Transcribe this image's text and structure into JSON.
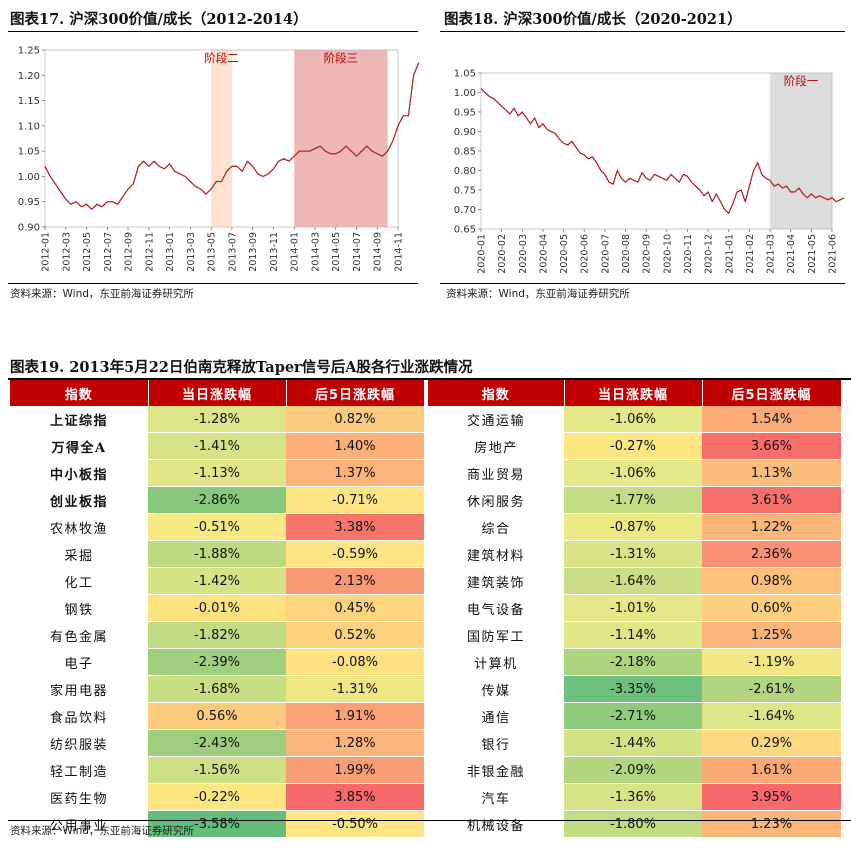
{
  "fig17": {
    "title": "图表17. 沪深300价值/成长（2012-2014）",
    "source": "资料来源：Wind，东亚前海证券研究所",
    "chart_data": {
      "type": "line",
      "title": "沪深300价值/成长（2012-2014）",
      "ylim": [
        0.9,
        1.25
      ],
      "yticks": [
        "0.90",
        "0.95",
        "1.00",
        "1.05",
        "1.10",
        "1.15",
        "1.20",
        "1.25"
      ],
      "xticks": [
        "2012-01",
        "2012-03",
        "2012-05",
        "2012-07",
        "2012-09",
        "2012-11",
        "2013-01",
        "2013-03",
        "2013-05",
        "2013-07",
        "2013-09",
        "2013-11",
        "2014-01",
        "2014-03",
        "2014-05",
        "2014-07",
        "2014-09",
        "2014-11"
      ],
      "shaded_regions": [
        {
          "label": "阶段二",
          "start": "2013-05",
          "end": "2013-07",
          "color": "#fde3cf"
        },
        {
          "label": "阶段三",
          "start": "2014-01",
          "end": "2014-10",
          "color": "#efb8b8"
        }
      ],
      "series": [
        {
          "name": "沪深300价值/成长",
          "color": "#b42828",
          "x": [
            0,
            0.5,
            1,
            1.5,
            2,
            2.5,
            3,
            3.5,
            4,
            4.5,
            5,
            5.5,
            6,
            6.5,
            7,
            7.5,
            8,
            8.5,
            9,
            9.5,
            10,
            10.5,
            11,
            11.5,
            12,
            12.5,
            13,
            13.5,
            14,
            14.5,
            15,
            15.5,
            16,
            16.5,
            17,
            17.5,
            18,
            18.5,
            19,
            19.5,
            20,
            20.5,
            21,
            21.5,
            22,
            22.5,
            23,
            23.5,
            24,
            24.5,
            25,
            25.5,
            26,
            26.5,
            27,
            27.5,
            28,
            28.5,
            29,
            29.5,
            30,
            30.5,
            31,
            31.5,
            32,
            32.5,
            33,
            33.5,
            34,
            34.5,
            35,
            35.5,
            36
          ],
          "y": [
            1.02,
            1.0,
            0.985,
            0.97,
            0.955,
            0.945,
            0.95,
            0.94,
            0.945,
            0.935,
            0.945,
            0.94,
            0.95,
            0.95,
            0.945,
            0.96,
            0.975,
            0.985,
            1.02,
            1.03,
            1.02,
            1.03,
            1.02,
            1.015,
            1.025,
            1.01,
            1.005,
            1.0,
            0.99,
            0.98,
            0.975,
            0.965,
            0.975,
            0.99,
            0.99,
            1.01,
            1.02,
            1.02,
            1.01,
            1.03,
            1.02,
            1.005,
            1.0,
            1.005,
            1.015,
            1.03,
            1.035,
            1.03,
            1.04,
            1.05,
            1.05,
            1.05,
            1.055,
            1.06,
            1.05,
            1.045,
            1.045,
            1.05,
            1.06,
            1.05,
            1.04,
            1.05,
            1.06,
            1.05,
            1.045,
            1.04,
            1.05,
            1.07,
            1.1,
            1.12,
            1.12,
            1.2,
            1.225
          ]
        }
      ]
    }
  },
  "fig18": {
    "title": "图表18. 沪深300价值/成长（2020-2021）",
    "source": "资料来源：Wind，东亚前海证券研究所",
    "chart_data": {
      "type": "line",
      "title": "沪深300价值/成长（2020-2021）",
      "ylim": [
        0.65,
        1.05
      ],
      "yticks": [
        "0.65",
        "0.70",
        "0.75",
        "0.80",
        "0.85",
        "0.90",
        "0.95",
        "1.00",
        "1.05"
      ],
      "xticks": [
        "2020-01",
        "2020-02",
        "2020-03",
        "2020-04",
        "2020-05",
        "2020-06",
        "2020-07",
        "2020-08",
        "2020-09",
        "2020-10",
        "2020-11",
        "2020-12",
        "2021-01",
        "2021-02",
        "2021-03",
        "2021-04",
        "2021-05",
        "2021-06"
      ],
      "shaded_regions": [
        {
          "label": "阶段一",
          "start": "2021-03",
          "end": "2021-06",
          "color": "#dcdcdc"
        }
      ],
      "series": [
        {
          "name": "沪深300价值/成长",
          "color": "#b42828",
          "x": [
            0,
            0.2,
            0.4,
            0.6,
            0.8,
            1,
            1.2,
            1.4,
            1.6,
            1.8,
            2,
            2.2,
            2.4,
            2.6,
            2.8,
            3,
            3.2,
            3.4,
            3.6,
            3.8,
            4,
            4.2,
            4.4,
            4.6,
            4.8,
            5,
            5.2,
            5.4,
            5.6,
            5.8,
            6,
            6.2,
            6.4,
            6.6,
            6.8,
            7,
            7.2,
            7.4,
            7.6,
            7.8,
            8,
            8.2,
            8.4,
            8.6,
            8.8,
            9,
            9.2,
            9.4,
            9.6,
            9.8,
            10,
            10.2,
            10.4,
            10.6,
            10.8,
            11,
            11.2,
            11.4,
            11.6,
            11.8,
            12,
            12.2,
            12.4,
            12.6,
            12.8,
            13,
            13.2,
            13.4,
            13.6,
            13.8,
            14,
            14.2,
            14.4,
            14.6,
            14.8,
            15,
            15.2,
            15.4,
            15.6,
            15.8,
            16,
            16.2,
            16.4,
            16.6,
            16.8,
            17,
            17.2,
            17.4,
            17.6
          ],
          "y": [
            1.01,
            1.0,
            0.99,
            0.985,
            0.975,
            0.965,
            0.955,
            0.945,
            0.96,
            0.94,
            0.95,
            0.935,
            0.92,
            0.935,
            0.91,
            0.92,
            0.905,
            0.9,
            0.895,
            0.88,
            0.87,
            0.865,
            0.875,
            0.86,
            0.845,
            0.84,
            0.83,
            0.835,
            0.82,
            0.8,
            0.79,
            0.77,
            0.765,
            0.8,
            0.78,
            0.77,
            0.78,
            0.775,
            0.77,
            0.795,
            0.78,
            0.775,
            0.79,
            0.785,
            0.78,
            0.775,
            0.79,
            0.78,
            0.77,
            0.79,
            0.785,
            0.77,
            0.76,
            0.75,
            0.735,
            0.745,
            0.72,
            0.74,
            0.72,
            0.7,
            0.69,
            0.715,
            0.745,
            0.75,
            0.72,
            0.76,
            0.8,
            0.82,
            0.79,
            0.78,
            0.775,
            0.76,
            0.765,
            0.755,
            0.76,
            0.745,
            0.745,
            0.755,
            0.74,
            0.73,
            0.74,
            0.73,
            0.735,
            0.73,
            0.725,
            0.73,
            0.72,
            0.725,
            0.73
          ]
        }
      ]
    }
  },
  "fig19": {
    "title": "图表19. 2013年5月22日伯南克释放Taper信号后A股各行业涨跌情况",
    "source": "资料来源：Wind，东亚前海证券研究所",
    "headers": [
      "指数",
      "当日涨跌幅",
      "后5日涨跌幅"
    ],
    "left": [
      {
        "name": "上证综指",
        "d1": "-1.28%",
        "d5": "0.82%",
        "c1": "#dce587",
        "c5": "#fdcb7d",
        "bold": true
      },
      {
        "name": "万得全A",
        "d1": "-1.41%",
        "d5": "1.40%",
        "c1": "#d6e386",
        "c5": "#fbb07a",
        "bold": true
      },
      {
        "name": "中小板指",
        "d1": "-1.13%",
        "d5": "1.37%",
        "c1": "#e1e788",
        "c5": "#fbb37a",
        "bold": true
      },
      {
        "name": "创业板指",
        "d1": "-2.86%",
        "d5": "-0.71%",
        "c1": "#88c87a",
        "c5": "#ffe483",
        "bold": true
      },
      {
        "name": "农林牧渔",
        "d1": "-0.51%",
        "d5": "3.38%",
        "c1": "#f9e983",
        "c5": "#f8756b",
        "bold": false
      },
      {
        "name": "采掘",
        "d1": "-1.88%",
        "d5": "-0.59%",
        "c1": "#bdda83",
        "c5": "#ffe583",
        "bold": false
      },
      {
        "name": "化工",
        "d1": "-1.42%",
        "d5": "2.13%",
        "c1": "#d5e386",
        "c5": "#f99874",
        "bold": false
      },
      {
        "name": "钢铁",
        "d1": "-0.01%",
        "d5": "0.45%",
        "c1": "#fde380",
        "c5": "#fed47f",
        "bold": false
      },
      {
        "name": "有色金属",
        "d1": "-1.82%",
        "d5": "0.52%",
        "c1": "#c1db83",
        "c5": "#fdd27f",
        "bold": false
      },
      {
        "name": "电子",
        "d1": "-2.39%",
        "d5": "-0.08%",
        "c1": "#a1cf7e",
        "c5": "#fee282",
        "bold": false
      },
      {
        "name": "家用电器",
        "d1": "-1.68%",
        "d5": "-1.31%",
        "c1": "#c8de84",
        "c5": "#eee784",
        "bold": false
      },
      {
        "name": "食品饮料",
        "d1": "0.56%",
        "d5": "1.91%",
        "c1": "#fdcb7d",
        "c5": "#faa075",
        "bold": false
      },
      {
        "name": "纺织服装",
        "d1": "-2.43%",
        "d5": "1.28%",
        "c1": "#9ece7d",
        "c5": "#fbb47a",
        "bold": false
      },
      {
        "name": "轻工制造",
        "d1": "-1.56%",
        "d5": "1.99%",
        "c1": "#cee085",
        "c5": "#f99d75",
        "bold": false
      },
      {
        "name": "医药生物",
        "d1": "-0.22%",
        "d5": "3.85%",
        "c1": "#fde782",
        "c5": "#f8696b",
        "bold": false
      },
      {
        "name": "公用事业",
        "d1": "-3.58%",
        "d5": "-0.50%",
        "c1": "#63be7b",
        "c5": "#ffe583",
        "bold": false
      }
    ],
    "right": [
      {
        "name": "交通运输",
        "d1": "-1.06%",
        "d5": "1.54%",
        "c1": "#e4e888",
        "c5": "#faab78"
      },
      {
        "name": "房地产",
        "d1": "-0.27%",
        "d5": "3.66%",
        "c1": "#fde782",
        "c5": "#f86e6b"
      },
      {
        "name": "商业贸易",
        "d1": "-1.06%",
        "d5": "1.13%",
        "c1": "#e4e888",
        "c5": "#fcbc7b"
      },
      {
        "name": "休闲服务",
        "d1": "-1.77%",
        "d5": "3.61%",
        "c1": "#c4dc84",
        "c5": "#f86f6b"
      },
      {
        "name": "综合",
        "d1": "-0.87%",
        "d5": "1.22%",
        "c1": "#ece985",
        "c5": "#fbb77a"
      },
      {
        "name": "建筑材料",
        "d1": "-1.31%",
        "d5": "2.36%",
        "c1": "#d9e387",
        "c5": "#f99274"
      },
      {
        "name": "建筑装饰",
        "d1": "-1.64%",
        "d5": "0.98%",
        "c1": "#cadf85",
        "c5": "#fcc27c"
      },
      {
        "name": "电气设备",
        "d1": "-1.01%",
        "d5": "0.60%",
        "c1": "#e6e888",
        "c5": "#fdcf7e"
      },
      {
        "name": "国防军工",
        "d1": "-1.14%",
        "d5": "1.25%",
        "c1": "#e0e787",
        "c5": "#fbb57a"
      },
      {
        "name": "计算机",
        "d1": "-2.18%",
        "d5": "-1.19%",
        "c1": "#aed37f",
        "c5": "#f2e883"
      },
      {
        "name": "传媒",
        "d1": "-3.35%",
        "d5": "-2.61%",
        "c1": "#6ec17c",
        "c5": "#b3d580"
      },
      {
        "name": "通信",
        "d1": "-2.71%",
        "d5": "-1.64%",
        "c1": "#91ca7c",
        "c5": "#dde686"
      },
      {
        "name": "银行",
        "d1": "-1.44%",
        "d5": "0.29%",
        "c1": "#d4e286",
        "c5": "#fed980"
      },
      {
        "name": "非银金融",
        "d1": "-2.09%",
        "d5": "1.61%",
        "c1": "#b3d580",
        "c5": "#faa977"
      },
      {
        "name": "汽车",
        "d1": "-1.36%",
        "d5": "3.95%",
        "c1": "#d7e387",
        "c5": "#f8696b"
      },
      {
        "name": "机械设备",
        "d1": "-1.80%",
        "d5": "1.23%",
        "c1": "#c2dc84",
        "c5": "#fbb67a"
      }
    ]
  }
}
